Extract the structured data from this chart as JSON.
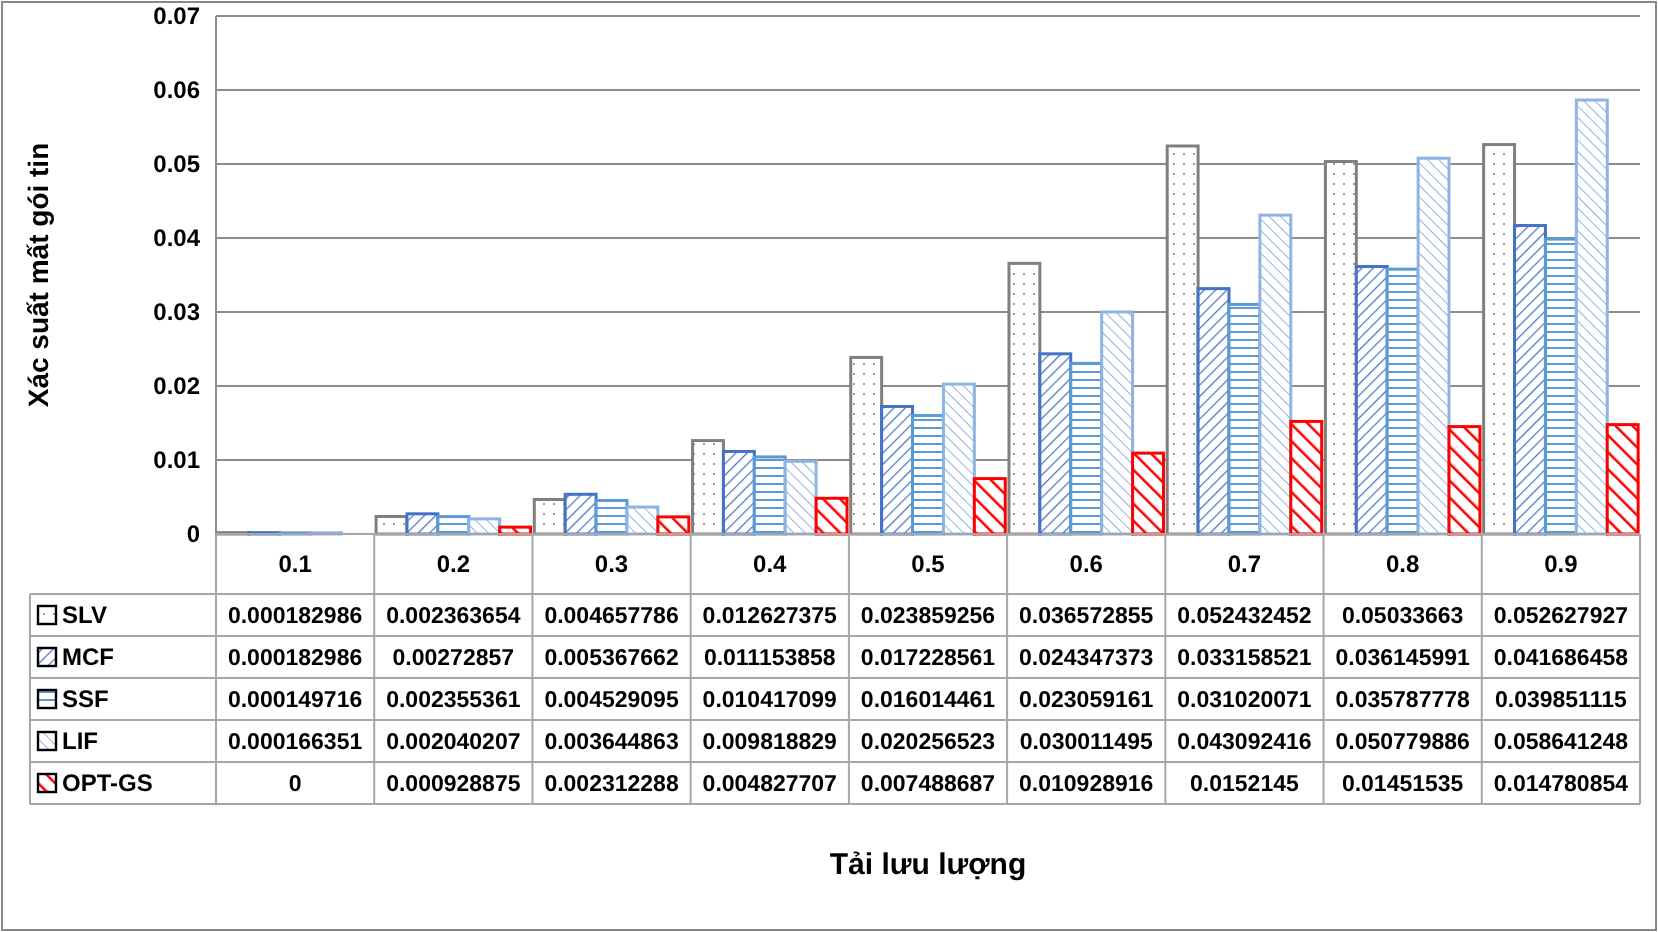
{
  "chart_data": {
    "type": "bar",
    "annotations": [
      "Tải lưu lượng"
    ],
    "ylabel": "Xác suất mất gói tin",
    "categories": [
      "0.1",
      "0.2",
      "0.3",
      "0.4",
      "0.5",
      "0.6",
      "0.7",
      "0.8",
      "0.9"
    ],
    "series": [
      {
        "name": "SLV",
        "color": "#7f7f7f",
        "values": [
          0.000182986,
          0.002363654,
          0.004657786,
          0.012627375,
          0.023859256,
          0.036572855,
          0.052432452,
          0.05033663,
          0.052627927
        ]
      },
      {
        "name": "MCF",
        "color": "#4472c4",
        "values": [
          0.000182986,
          0.00272857,
          0.005367662,
          0.011153858,
          0.017228561,
          0.024347373,
          0.033158521,
          0.036145991,
          0.041686458
        ]
      },
      {
        "name": "SSF",
        "color": "#5b9bd5",
        "values": [
          0.000149716,
          0.002355361,
          0.004529095,
          0.010417099,
          0.016014461,
          0.023059161,
          0.031020071,
          0.035787778,
          0.039851115
        ]
      },
      {
        "name": "LIF",
        "color": "#8eb4e3",
        "values": [
          0.000166351,
          0.002040207,
          0.003644863,
          0.009818829,
          0.020256523,
          0.030011495,
          0.043092416,
          0.050779886,
          0.058641248
        ]
      },
      {
        "name": "OPT-GS",
        "color": "#ff0000",
        "values": [
          0,
          0.000928875,
          0.002312288,
          0.004827707,
          0.007488687,
          0.010928916,
          0.0152145,
          0.01451535,
          0.014780854
        ]
      }
    ],
    "ylim": [
      0,
      0.07
    ],
    "yticks": [
      {
        "value": 0,
        "label": "0"
      },
      {
        "value": 0.01,
        "label": "0.01"
      },
      {
        "value": 0.02,
        "label": "0.02"
      },
      {
        "value": 0.03,
        "label": "0.03"
      },
      {
        "value": 0.04,
        "label": "0.04"
      },
      {
        "value": 0.05,
        "label": "0.05"
      },
      {
        "value": 0.06,
        "label": "0.06"
      },
      {
        "value": 0.07,
        "label": "0.07"
      }
    ],
    "grid": "y",
    "legend": "bottom",
    "data_labels": true
  }
}
